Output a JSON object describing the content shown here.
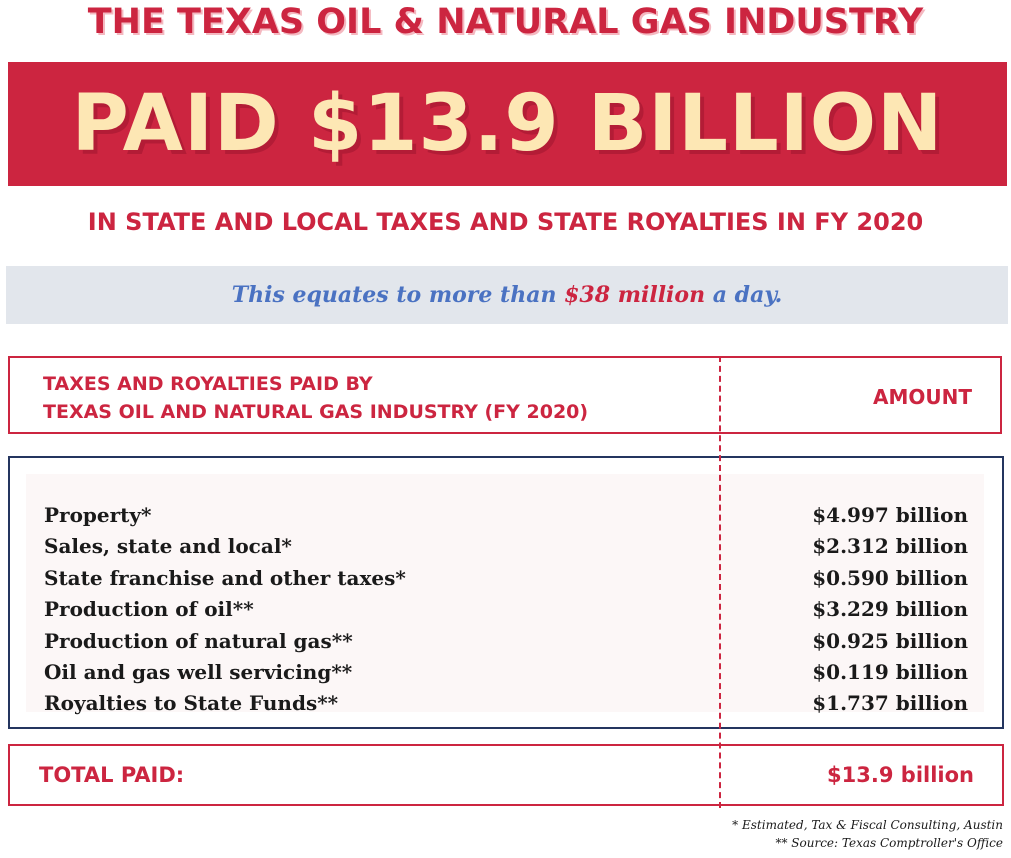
{
  "header": {
    "title": "THE TEXAS OIL & NATURAL GAS INDUSTRY",
    "headline": "PAID $13.9 BILLION",
    "subtitle": "IN STATE AND LOCAL TAXES AND STATE ROYALTIES IN FY 2020"
  },
  "equates": {
    "prefix": "This equates to more than",
    "highlight": "$38 million",
    "suffix": "a day."
  },
  "table": {
    "header_line1": "TAXES AND ROYALTIES PAID BY",
    "header_line2": "TEXAS OIL AND NATURAL GAS INDUSTRY (FY 2020)",
    "amount_header": "AMOUNT",
    "rows": [
      {
        "label": "Property*",
        "amount": "$4.997 billion"
      },
      {
        "label": "Sales, state and local*",
        "amount": "$2.312 billion"
      },
      {
        "label": "State franchise and other taxes*",
        "amount": "$0.590 billion"
      },
      {
        "label": "Production of oil**",
        "amount": "$3.229 billion"
      },
      {
        "label": "Production of natural gas**",
        "amount": "$0.925 billion"
      },
      {
        "label": "Oil and gas well servicing**",
        "amount": "$0.119 billion"
      },
      {
        "label": "Royalties to State Funds**",
        "amount": "$1.737 billion"
      }
    ],
    "total_label": "TOTAL PAID:",
    "total_value": "$13.9 billion"
  },
  "footnotes": {
    "note1": "* Estimated, Tax & Fiscal Consulting, Austin",
    "note2": "** Source: Texas Comptroller's Office"
  },
  "colors": {
    "brand_red": "#cc2540",
    "cream": "#fde7b4",
    "navy": "#24355f",
    "blue_text": "#4a72c2",
    "band_gray": "#e2e6ec"
  }
}
